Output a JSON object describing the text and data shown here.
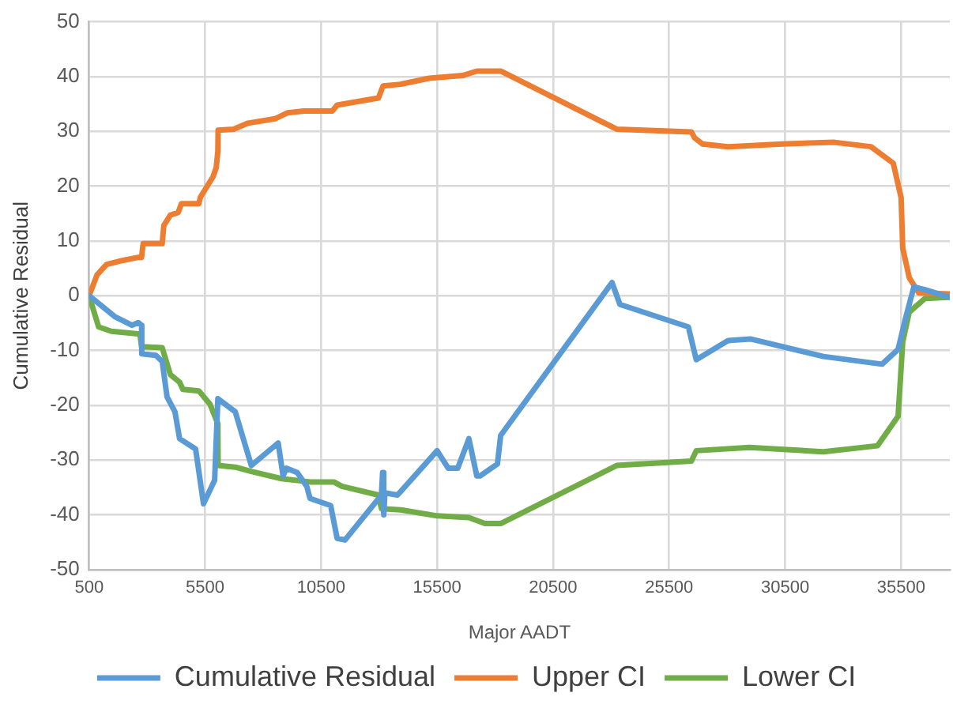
{
  "chart_data": {
    "type": "line",
    "xlabel": "Major AADT",
    "ylabel": "Cumulative Residual",
    "xlim": [
      500,
      37600
    ],
    "xticks": [
      500,
      5500,
      10500,
      15500,
      20500,
      25500,
      30500,
      35500
    ],
    "ylim": [
      -50,
      50
    ],
    "yticks": [
      -50,
      -40,
      -30,
      -20,
      -10,
      0,
      10,
      20,
      30,
      40,
      50
    ],
    "grid": true,
    "legend": "bottom",
    "marker": "none",
    "line_style": "solid",
    "series": [
      {
        "name": "Cumulative Residual",
        "color": "#5b9bd5",
        "x": [
          500,
          1600,
          2350,
          2620,
          2760,
          2770,
          3380,
          3650,
          3860,
          4200,
          4400,
          5090,
          5230,
          5430,
          5910,
          6050,
          6800,
          7490,
          8650,
          8860,
          9000,
          9470,
          9880,
          10020,
          10910,
          11190,
          11530,
          13100,
          13150,
          13200,
          13250,
          13790,
          15500,
          15980,
          16390,
          16870,
          17210,
          17350,
          18100,
          18240,
          23040,
          23380,
          26330,
          26670,
          28040,
          29000,
          32150,
          34680,
          35370,
          35710,
          36050,
          36530,
          37600
        ],
        "values": [
          0,
          -3.8,
          -5.4,
          -4.9,
          -5.4,
          -10.6,
          -10.9,
          -12,
          -18.5,
          -21.2,
          -26.1,
          -28,
          -32.1,
          -38,
          -33.7,
          -18.8,
          -21.2,
          -31,
          -26.9,
          -32.9,
          -31.5,
          -32.3,
          -34.8,
          -37,
          -38.3,
          -44.3,
          -44.6,
          -36.4,
          -32.3,
          -40,
          -36,
          -36.4,
          -28.3,
          -31.5,
          -31.5,
          -26.1,
          -32.9,
          -32.9,
          -30.7,
          -25.5,
          2.4,
          -1.6,
          -5.7,
          -11.7,
          -8.2,
          -7.9,
          -11.1,
          -12.5,
          -9.8,
          -3.8,
          1.6,
          1.1,
          -0.3
        ]
      },
      {
        "name": "Upper CI",
        "color": "#ed7d31",
        "x": [
          500,
          842,
          1253,
          1800,
          2620,
          2760,
          2830,
          3580,
          3650,
          3720,
          4000,
          4340,
          4480,
          5230,
          5300,
          5840,
          5980,
          6050,
          6060,
          6730,
          7350,
          8510,
          9060,
          9750,
          10980,
          11190,
          12970,
          13170,
          13920,
          15160,
          16600,
          17210,
          18240,
          23240,
          26460,
          26600,
          26940,
          28040,
          30370,
          32630,
          34200,
          35160,
          35500,
          35570,
          35850,
          36260,
          37600
        ],
        "values": [
          0,
          3.8,
          5.7,
          6.3,
          7,
          7,
          9.5,
          9.5,
          9.5,
          12.8,
          14.7,
          15.2,
          16.8,
          16.8,
          18,
          21.7,
          23.4,
          26.4,
          30.2,
          30.4,
          31.5,
          32.3,
          33.4,
          33.7,
          33.7,
          34.8,
          36.1,
          38.3,
          38.6,
          39.7,
          40.2,
          41,
          41,
          30.4,
          29.9,
          28.8,
          27.7,
          27.2,
          27.7,
          28,
          27.2,
          24.2,
          17.9,
          8.7,
          3.3,
          0.5,
          0.3
        ]
      },
      {
        "name": "Lower CI",
        "color": "#70ad47",
        "x": [
          500,
          910,
          1460,
          2690,
          2760,
          3650,
          4000,
          4400,
          4540,
          5230,
          5710,
          6050,
          6060,
          6800,
          7490,
          8790,
          10020,
          11050,
          11390,
          12970,
          13100,
          13930,
          15500,
          16870,
          17560,
          18240,
          23240,
          26460,
          26670,
          28960,
          32150,
          34480,
          35370,
          35570,
          35850,
          36530,
          37600
        ],
        "values": [
          0,
          -5.7,
          -6.5,
          -7,
          -9.3,
          -9.5,
          -14.4,
          -15.8,
          -17.1,
          -17.4,
          -19.8,
          -23.4,
          -31,
          -31.3,
          -32.1,
          -33.4,
          -34,
          -34,
          -34.8,
          -36.4,
          -38.9,
          -39.1,
          -40.2,
          -40.5,
          -41.6,
          -41.6,
          -31,
          -30.2,
          -28.3,
          -27.7,
          -28.5,
          -27.4,
          -22,
          -8.4,
          -3,
          -0.5,
          -0.3
        ]
      }
    ]
  }
}
